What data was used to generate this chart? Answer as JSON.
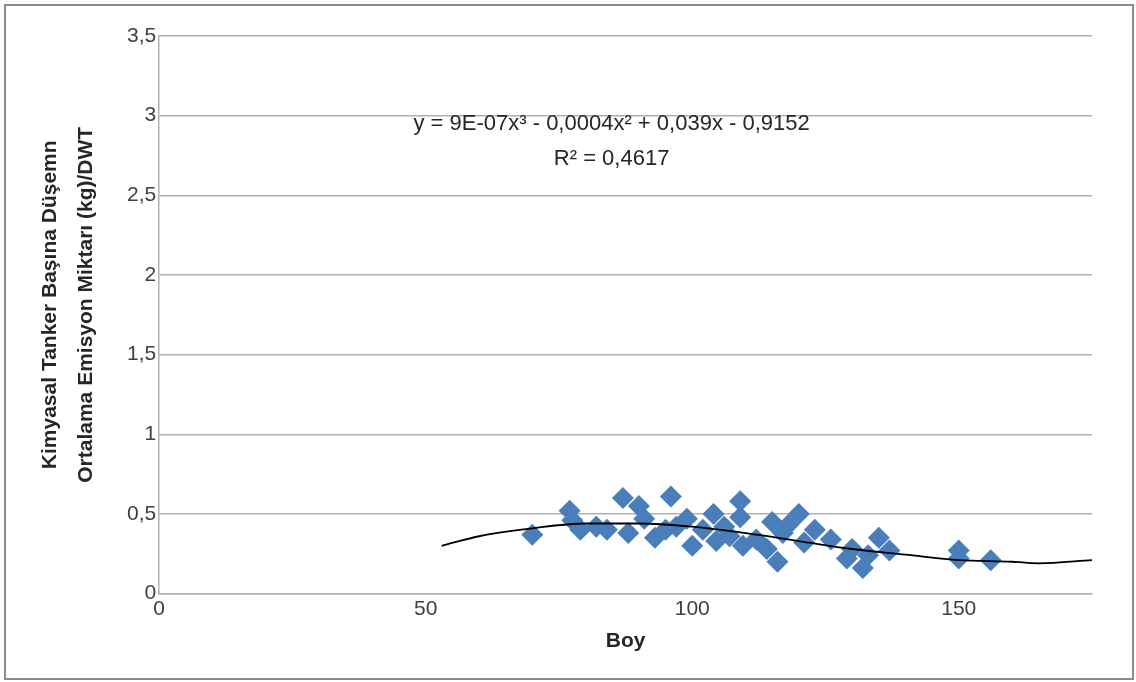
{
  "chart_data": {
    "type": "scatter",
    "xlabel": "Boy",
    "ylabel": "Kimyasal Tanker Başına Düşemn Ortalama Emisyon Miktarı (kg)/DWT",
    "annotations": [
      "y = 9E-07x³ - 0,0004x² + 0,039x - 0,9152",
      "R² = 0,4617"
    ],
    "xlim": [
      0,
      175
    ],
    "xticks": [
      0,
      50,
      100,
      150
    ],
    "ylim": [
      0,
      3.5
    ],
    "yticks": [
      0,
      {
        "value": 0.5,
        "label": "0,5"
      },
      1,
      {
        "value": 1.5,
        "label": "1,5"
      },
      2,
      {
        "value": 2.5,
        "label": "2,5"
      },
      3,
      {
        "value": 3.5,
        "label": "3,5"
      }
    ],
    "grid": "y",
    "legend": false,
    "marker": "diamond",
    "series": [
      {
        "color": "#4a7ebb",
        "x": [
          70,
          77,
          77.5,
          79,
          82,
          84,
          87,
          88,
          90,
          91,
          93,
          95,
          96,
          97,
          99,
          100,
          102,
          104,
          104.5,
          106,
          107,
          109,
          109,
          109.5,
          112,
          114,
          115,
          116,
          117,
          118,
          120,
          121,
          123,
          125,
          126,
          129,
          130,
          132,
          133,
          135,
          137,
          150,
          150,
          156
        ],
        "values": [
          0.37,
          0.52,
          0.46,
          0.4,
          0.42,
          0.4,
          0.6,
          0.38,
          0.55,
          0.47,
          0.35,
          0.4,
          0.61,
          0.42,
          0.47,
          0.3,
          0.4,
          0.5,
          0.33,
          0.42,
          0.36,
          0.58,
          0.48,
          0.3,
          0.34,
          0.28,
          0.45,
          0.2,
          0.38,
          0.43,
          0.5,
          0.32,
          0.4,
          null,
          0.34,
          0.22,
          0.28,
          0.16,
          0.24,
          0.35,
          0.27,
          0.27,
          0.22,
          0.21
        ]
      },
      {
        "type": "line",
        "color": "#000000",
        "marker": "none",
        "x": [
          53,
          60,
          70,
          80,
          90,
          100,
          110,
          120,
          130,
          140,
          150,
          160,
          165,
          175
        ],
        "values": [
          0.3,
          0.36,
          0.41,
          0.44,
          0.44,
          0.42,
          0.38,
          0.33,
          0.28,
          0.245,
          0.21,
          0.2,
          0.19,
          0.21
        ]
      }
    ]
  }
}
